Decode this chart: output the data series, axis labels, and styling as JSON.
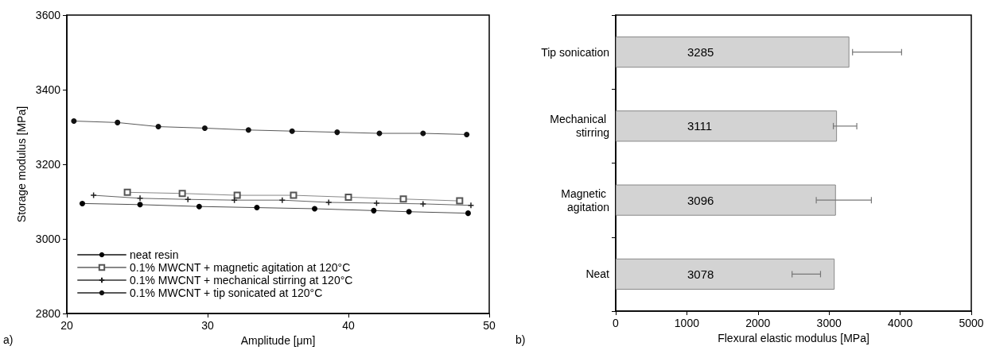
{
  "chart_data": [
    {
      "type": "line",
      "xlabel": "Amplitude [μm]",
      "ylabel": "Storage modulus [MPa]",
      "xlim": [
        20,
        50
      ],
      "xticks": [
        20,
        30,
        40,
        50
      ],
      "ylim": [
        2800,
        3600
      ],
      "yticks": [
        2800,
        3000,
        3200,
        3400,
        3600
      ],
      "grid": false,
      "legend": "bottom left",
      "line_style": "solid",
      "annotations": [
        "a)"
      ],
      "series": [
        {
          "name": "neat resin",
          "color": "#000000",
          "marker": "circle",
          "x": [
            21.1,
            25.2,
            29.4,
            33.5,
            37.6,
            41.8,
            44.3,
            48.5
          ],
          "values": [
            3095,
            3092,
            3087,
            3084,
            3081,
            3076,
            3073,
            3069
          ]
        },
        {
          "name": "0.1% MWCNT + magnetic agitation at 120°C",
          "color": "#555555",
          "marker": "square",
          "x": [
            24.3,
            28.2,
            32.1,
            36.1,
            40.0,
            43.9,
            47.9
          ],
          "values": [
            3125,
            3122,
            3117,
            3117,
            3112,
            3107,
            3102
          ]
        },
        {
          "name": "0.1% MWCNT + mechanical stirring at 120°C",
          "color": "#222222",
          "marker": "cross",
          "x": [
            21.9,
            25.2,
            28.6,
            31.9,
            35.3,
            38.6,
            42.0,
            45.3,
            48.7
          ],
          "values": [
            3117,
            3109,
            3106,
            3104,
            3104,
            3098,
            3096,
            3094,
            3090
          ]
        },
        {
          "name": "0.1% MWCNT + tip sonicated at 120°C",
          "color": "#111111",
          "marker": "circle",
          "x": [
            20.5,
            23.6,
            26.5,
            29.8,
            32.9,
            36.0,
            39.2,
            42.2,
            45.3,
            48.4
          ],
          "values": [
            3316,
            3312,
            3301,
            3297,
            3292,
            3289,
            3286,
            3283,
            3283,
            3280
          ]
        }
      ]
    },
    {
      "type": "bar",
      "orientation": "horizontal",
      "xlabel": "Flexural elastic modulus [MPa]",
      "xlim": [
        0,
        5000
      ],
      "xticks": [
        0,
        1000,
        2000,
        3000,
        4000,
        5000
      ],
      "grid": false,
      "annotations": [
        "b)"
      ],
      "categories": [
        "Tip sonication",
        "Mechanical stirring",
        "Magnetic agitation",
        "Neat"
      ],
      "values": [
        3285,
        3111,
        3096,
        3078
      ],
      "color": "#d3d3d3",
      "data_labels": true,
      "errors": [
        [
          3330,
          4020
        ],
        [
          3060,
          3390
        ],
        [
          2820,
          3595
        ],
        [
          2480,
          2880
        ]
      ]
    }
  ]
}
